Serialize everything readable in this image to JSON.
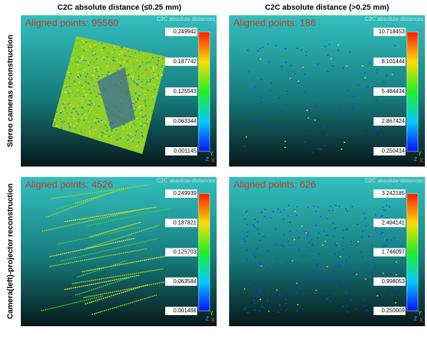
{
  "columns": [
    "C2C absolute distance (≤0.25 mm)",
    "C2C absolute distance (>0.25 mm)"
  ],
  "rows": [
    "Stereo cameras reconstruction",
    "Camera(left)-projector reconstruction"
  ],
  "axes": [
    "Z",
    "Y",
    "X"
  ],
  "panels": [
    {
      "label": "Aligned points: 95560",
      "scale_title": "C2C absolute distances",
      "scale_ticks": [
        "0.249942",
        "0.187742",
        "0.125543",
        "0.063344",
        "0.001145"
      ]
    },
    {
      "label": "Aligned points: 186",
      "scale_title": "C2C absolute distances",
      "scale_ticks": [
        "10.718453",
        "8.101444",
        "5.484434",
        "2.867424",
        "0.250414"
      ]
    },
    {
      "label": "Aligned points: 4526",
      "scale_title": "C2C absolute distances",
      "scale_ticks": [
        "0.249939",
        "0.187821",
        "0.125703",
        "0.063584",
        "0.001466"
      ]
    },
    {
      "label": "Aligned points: 626",
      "scale_title": "C2C absolute distances",
      "scale_ticks": [
        "3.242185",
        "2.494141",
        "1.746097",
        "0.998053",
        "0.250009"
      ]
    }
  ]
}
